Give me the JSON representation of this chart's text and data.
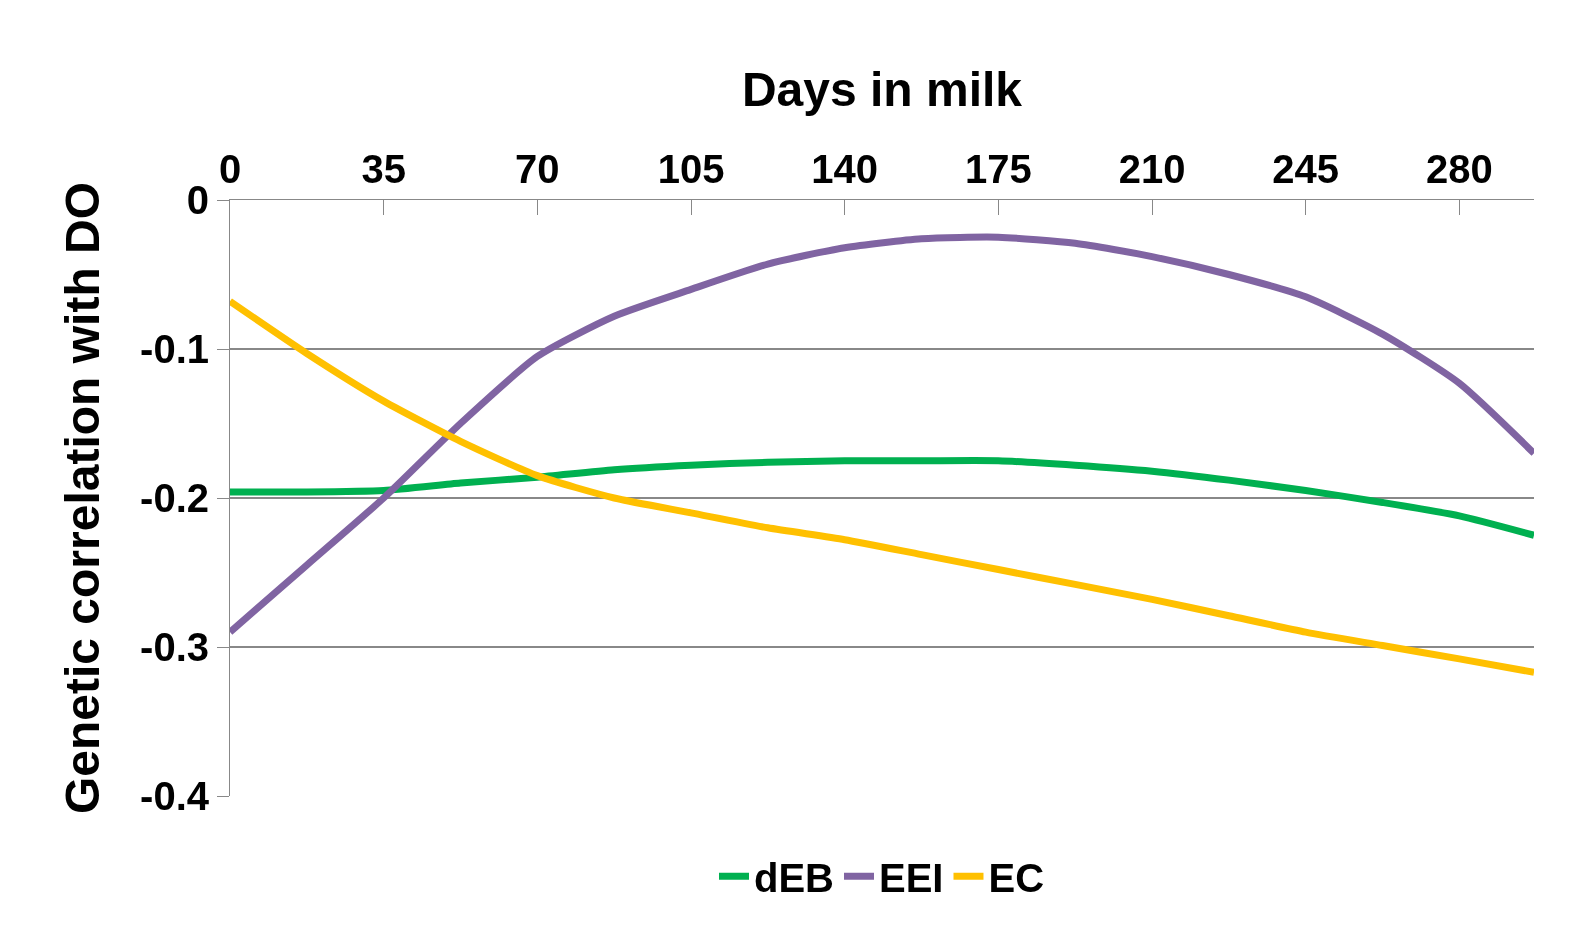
{
  "chart_data": {
    "type": "line",
    "xlabel": "Days in milk",
    "ylabel": "Genetic correlation with DO",
    "x": [
      0,
      17.5,
      35,
      52.5,
      70,
      87.5,
      105,
      122.5,
      140,
      157.5,
      175,
      192.5,
      210,
      227.5,
      245,
      262.5,
      280,
      297
    ],
    "series": [
      {
        "name": "dEB",
        "color": "#00b050",
        "values": [
          -0.196,
          -0.196,
          -0.195,
          -0.19,
          -0.186,
          -0.181,
          -0.178,
          -0.176,
          -0.175,
          -0.175,
          -0.175,
          -0.178,
          -0.182,
          -0.188,
          -0.195,
          -0.203,
          -0.212,
          -0.225
        ]
      },
      {
        "name": "EEI",
        "color": "#8064a2",
        "values": [
          -0.29,
          -0.245,
          -0.2,
          -0.15,
          -0.105,
          -0.078,
          -0.06,
          -0.043,
          -0.032,
          -0.026,
          -0.025,
          -0.029,
          -0.038,
          -0.05,
          -0.065,
          -0.09,
          -0.123,
          -0.17
        ]
      },
      {
        "name": "EC",
        "color": "#ffc000",
        "values": [
          -0.068,
          -0.103,
          -0.135,
          -0.162,
          -0.185,
          -0.2,
          -0.21,
          -0.22,
          -0.228,
          -0.238,
          -0.248,
          -0.258,
          -0.268,
          -0.279,
          -0.29,
          -0.299,
          -0.308,
          -0.317
        ]
      }
    ],
    "xlim": [
      0,
      297
    ],
    "xticks": [
      0,
      35,
      70,
      105,
      140,
      175,
      210,
      245,
      280
    ],
    "ylim": [
      -0.4,
      0
    ],
    "yticks": [
      0,
      -0.1,
      -0.2,
      -0.3,
      -0.4
    ],
    "grid": "y",
    "legend": "bottom",
    "marker": "none",
    "line_style": "solid"
  }
}
